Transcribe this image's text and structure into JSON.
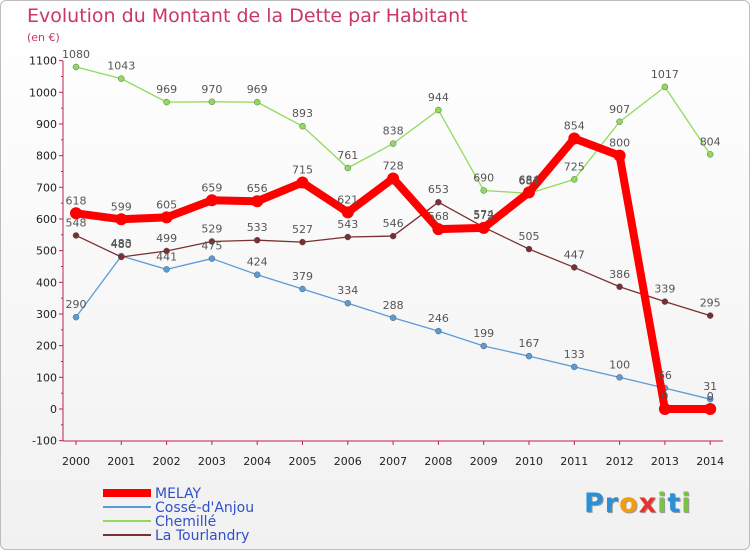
{
  "header": {
    "title": "Evolution du Montant de la Dette par Habitant",
    "unit": "(en €)"
  },
  "brand": {
    "letters": [
      {
        "ch": "P",
        "color": "#2c8fd6"
      },
      {
        "ch": "r",
        "color": "#2c8fd6"
      },
      {
        "ch": "o",
        "color": "#f39c12"
      },
      {
        "ch": "x",
        "color": "#e8322f"
      },
      {
        "ch": "i",
        "color": "#7cc242"
      },
      {
        "ch": "t",
        "color": "#2c8fd6"
      },
      {
        "ch": "i",
        "color": "#7cc242"
      }
    ]
  },
  "chart_data": {
    "type": "line",
    "title": "Evolution du Montant de la Dette par Habitant",
    "ylabel": "(en €)",
    "xlabel": "",
    "x": [
      "2000",
      "2001",
      "2002",
      "2003",
      "2004",
      "2005",
      "2006",
      "2007",
      "2008",
      "2009",
      "2010",
      "2011",
      "2012",
      "2013",
      "2014"
    ],
    "ylim": [
      -100,
      1100
    ],
    "yticks": [
      "-100",
      "0",
      "100",
      "200",
      "300",
      "400",
      "500",
      "600",
      "700",
      "800",
      "900",
      "1000",
      "1100"
    ],
    "grid": false,
    "legend": "bottom-left",
    "series": [
      {
        "name": "MELAY",
        "color": "#ff0000",
        "highlight": true,
        "values": [
          618,
          599,
          605,
          659,
          656,
          715,
          621,
          728,
          568,
          572,
          684,
          854,
          800,
          0,
          0
        ],
        "labels": [
          "618",
          "599",
          "605",
          "659",
          "656",
          "715",
          "621",
          "728",
          "568",
          "572",
          "684",
          "854",
          "800",
          "0",
          "0"
        ]
      },
      {
        "name": "Cossé-d'Anjou",
        "color": "#5b9bd5",
        "highlight": false,
        "values": [
          290,
          483,
          441,
          475,
          424,
          379,
          334,
          288,
          246,
          199,
          167,
          133,
          100,
          66,
          31
        ],
        "labels": [
          "290",
          "483",
          "441",
          "475",
          "424",
          "379",
          "334",
          "288",
          "246",
          "199",
          "167",
          "133",
          "100",
          "66",
          "31"
        ]
      },
      {
        "name": "Chemillé",
        "color": "#8fdc5a",
        "highlight": false,
        "values": [
          1080,
          1043,
          969,
          970,
          969,
          893,
          761,
          838,
          944,
          690,
          681,
          725,
          907,
          1017,
          804
        ],
        "labels": [
          "1080",
          "1043",
          "969",
          "970",
          "969",
          "893",
          "761",
          "838",
          "944",
          "690",
          "681",
          "725",
          "907",
          "1017",
          "804"
        ]
      },
      {
        "name": "La Tourlandry",
        "color": "#7a3030",
        "highlight": false,
        "values": [
          548,
          480,
          499,
          529,
          533,
          527,
          543,
          546,
          653,
          574,
          505,
          447,
          386,
          339,
          295
        ],
        "labels": [
          "548",
          "480",
          "499",
          "529",
          "533",
          "527",
          "543",
          "546",
          "653",
          "574",
          "505",
          "447",
          "386",
          "339",
          "295"
        ]
      }
    ]
  }
}
